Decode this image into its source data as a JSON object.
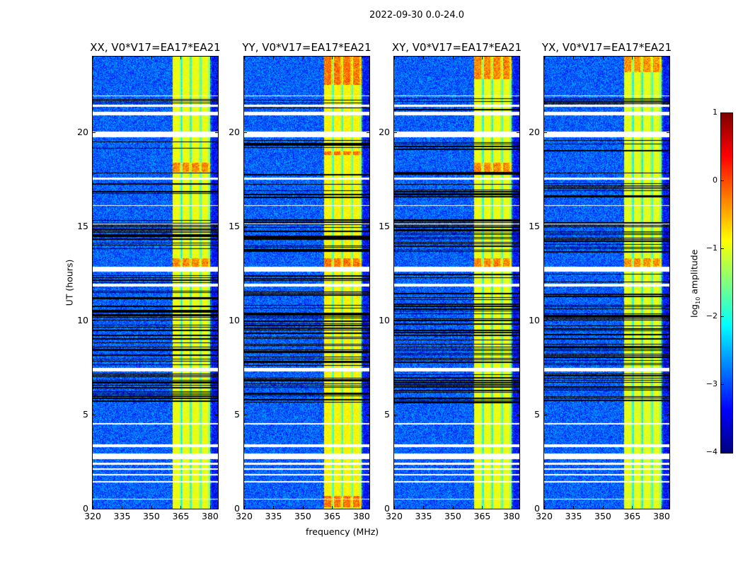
{
  "suptitle": "2022-09-30 0.0-24.0",
  "ylabel": "UT (hours)",
  "xlabel": "frequency (MHz)",
  "colorbar": {
    "label_prefix": "log",
    "label_sub": "10",
    "label_suffix": " amplitude",
    "range": [
      -4,
      1
    ],
    "ticks": [
      "1",
      "0",
      "−1",
      "−2",
      "−3",
      "−4"
    ],
    "tick_values": [
      1,
      0,
      -1,
      -2,
      -3,
      -4
    ],
    "colormap": "jet"
  },
  "chart_data": {
    "type": "heatmap",
    "title": "2022-09-30 0.0-24.0",
    "xlabel": "frequency (MHz)",
    "ylabel": "UT (hours)",
    "xlim": [
      320,
      384
    ],
    "ylim": [
      0,
      24
    ],
    "xticks": [
      320,
      335,
      350,
      365,
      380
    ],
    "yticks": [
      0,
      5,
      10,
      15,
      20
    ],
    "value_label": "log10 amplitude",
    "value_range": [
      -4,
      1
    ],
    "background_level": -2.9,
    "band": {
      "from_mhz": 360.5,
      "to_mhz": 380,
      "channel_gaps_mhz": [
        365.5,
        370.2,
        375.2
      ]
    },
    "flagged_hours": [
      [
        0.5,
        0.55
      ],
      [
        1.4,
        1.5
      ],
      [
        1.8,
        1.85
      ],
      [
        2.1,
        2.15
      ],
      [
        2.35,
        2.45
      ],
      [
        2.65,
        2.95
      ],
      [
        3.3,
        3.45
      ],
      [
        4.5,
        4.55
      ],
      [
        7.3,
        7.5
      ],
      [
        11.8,
        11.95
      ],
      [
        12.6,
        12.85
      ],
      [
        15.1,
        15.15
      ],
      [
        16.1,
        16.15
      ],
      [
        17.5,
        17.6
      ],
      [
        19.75,
        20.05
      ],
      [
        20.9,
        21.1
      ],
      [
        21.35,
        21.45
      ],
      [
        21.9,
        21.95
      ]
    ],
    "dark_hours": [
      [
        5.6,
        7.2
      ],
      [
        7.6,
        10.9
      ],
      [
        11.1,
        11.6
      ],
      [
        12.0,
        12.5
      ],
      [
        13.6,
        15.4
      ],
      [
        16.5,
        17.3
      ],
      [
        17.7,
        17.9
      ],
      [
        19.0,
        19.6
      ],
      [
        21.15,
        21.3
      ],
      [
        21.5,
        21.8
      ]
    ],
    "panels": [
      {
        "title": "XX, V0*V17=EA17*EA21",
        "band_level": -0.95,
        "bright_hours": [
          [
            12.8,
            13.3
          ],
          [
            17.9,
            18.4
          ]
        ]
      },
      {
        "title": "YY, V0*V17=EA17*EA21",
        "band_level": -0.85,
        "bright_hours": [
          [
            0.1,
            0.7
          ],
          [
            12.8,
            13.3
          ],
          [
            18.8,
            19.0
          ],
          [
            22.5,
            24.0
          ]
        ]
      },
      {
        "title": "XY, V0*V17=EA17*EA21",
        "band_level": -0.95,
        "bright_hours": [
          [
            12.8,
            13.3
          ],
          [
            17.9,
            18.4
          ],
          [
            22.8,
            24.0
          ]
        ]
      },
      {
        "title": "YX, V0*V17=EA17*EA21",
        "band_level": -1.0,
        "bright_hours": [
          [
            12.8,
            13.3
          ],
          [
            23.2,
            24.0
          ]
        ]
      }
    ]
  }
}
